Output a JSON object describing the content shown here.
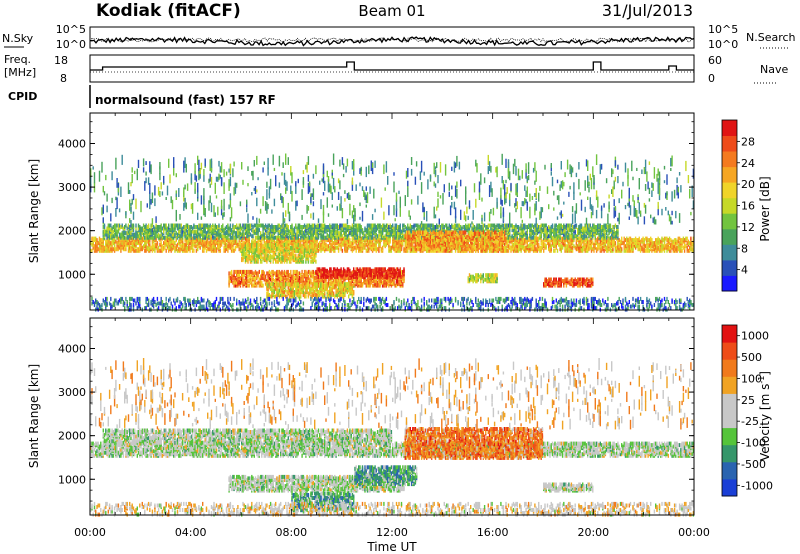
{
  "header": {
    "station": "Kodiak (fitACF)",
    "beam": "Beam 01",
    "date": "31/Jul/2013"
  },
  "top_panels": {
    "nsky": {
      "left_label": "N.Sky",
      "right_label": "N.Search",
      "left_ticks": [
        "10^5",
        "10^0"
      ],
      "right_ticks": [
        "10^5",
        "10^0"
      ]
    },
    "freq": {
      "left_label_line1": "Freq.",
      "left_label_line2": "[MHz]",
      "right_label": "Nave",
      "left_ticks": [
        "18",
        "8"
      ],
      "right_ticks": [
        "60",
        "0"
      ]
    },
    "cpid": {
      "label": "CPID",
      "text": "normalsound (fast) 157 RF"
    }
  },
  "chart_data": [
    {
      "type": "heatmap",
      "panel": "power",
      "xlabel": "Time UT",
      "ylabel": "Slant Range [km]",
      "xlim_hours": [
        0,
        24
      ],
      "x_ticks": [
        "00:00",
        "04:00",
        "08:00",
        "12:00",
        "16:00",
        "20:00",
        "00:00"
      ],
      "ylim_km": [
        180,
        4700
      ],
      "y_ticks": [
        1000,
        2000,
        3000,
        4000
      ],
      "colorbar": {
        "label": "Power [dB]",
        "tick_labels": [
          "4",
          "8",
          "12",
          "16",
          "20",
          "24",
          "28"
        ],
        "colors": [
          "#1a1aff",
          "#2950b8",
          "#3e8c9a",
          "#49a35b",
          "#72c43f",
          "#c6d928",
          "#f0d42a",
          "#f6a623",
          "#f47a1f",
          "#ee4b1a",
          "#e01414"
        ]
      },
      "regions": [
        {
          "name": "band-1700",
          "t": [
            0,
            24
          ],
          "r": [
            1550,
            1850
          ],
          "level": 0.65
        },
        {
          "name": "band-2000",
          "t": [
            0.5,
            21
          ],
          "r": [
            1850,
            2150
          ],
          "level": 0.35
        },
        {
          "name": "mid-900",
          "t": [
            5.5,
            12.5
          ],
          "r": [
            750,
            1100
          ],
          "level": 0.75
        },
        {
          "name": "strong-1000",
          "t": [
            9,
            12.5
          ],
          "r": [
            950,
            1150
          ],
          "level": 0.95
        },
        {
          "name": "low-600",
          "t": [
            7,
            10.5
          ],
          "r": [
            500,
            800
          ],
          "level": 0.6
        },
        {
          "name": "band-1500",
          "t": [
            6,
            9
          ],
          "r": [
            1300,
            1700
          ],
          "level": 0.55
        },
        {
          "name": "patch-1800",
          "t": [
            12.5,
            16.5
          ],
          "r": [
            1550,
            2000
          ],
          "level": 0.7
        },
        {
          "name": "patch-900",
          "t": [
            15,
            16.2
          ],
          "r": [
            850,
            1000
          ],
          "level": 0.5
        },
        {
          "name": "patch-800",
          "t": [
            18,
            20
          ],
          "r": [
            750,
            900
          ],
          "level": 0.85
        },
        {
          "name": "near-300",
          "t": [
            0,
            24
          ],
          "r": [
            200,
            450
          ],
          "level": 0.2
        },
        {
          "name": "sparse-high",
          "t": [
            0,
            24
          ],
          "r": [
            2200,
            3600
          ],
          "level": 0.3
        }
      ]
    },
    {
      "type": "heatmap",
      "panel": "velocity",
      "xlabel": "Time UT",
      "ylabel": "Slant Range [km]",
      "xlim_hours": [
        0,
        24
      ],
      "x_ticks": [
        "00:00",
        "04:00",
        "08:00",
        "12:00",
        "16:00",
        "20:00",
        "00:00"
      ],
      "ylim_km": [
        180,
        4700
      ],
      "y_ticks": [
        1000,
        2000,
        3000,
        4000
      ],
      "colorbar": {
        "label": "Velocity [m s-1]",
        "tick_labels": [
          "1000",
          "500",
          "100",
          "25",
          "-25",
          "-100",
          "-500",
          "-1000"
        ],
        "colors": [
          "#1a3fd6",
          "#2a64b0",
          "#35966a",
          "#55c43a",
          "#c8c8c8",
          "#c8c8c8",
          "#f0a324",
          "#f07a1c",
          "#ee4c18",
          "#e21212"
        ]
      },
      "regions": [
        {
          "name": "band-1700",
          "t": [
            0,
            24
          ],
          "r": [
            1550,
            1850
          ],
          "level": 0.45
        },
        {
          "name": "band-2000",
          "t": [
            0.5,
            12
          ],
          "r": [
            1850,
            2150
          ],
          "level": 0.45
        },
        {
          "name": "mid-900",
          "t": [
            5.5,
            12.5
          ],
          "r": [
            750,
            1100
          ],
          "level": 0.45
        },
        {
          "name": "green-1000",
          "t": [
            10.5,
            13
          ],
          "r": [
            900,
            1300
          ],
          "level": 0.3
        },
        {
          "name": "low-green",
          "t": [
            8,
            10.5
          ],
          "r": [
            300,
            700
          ],
          "level": 0.3
        },
        {
          "name": "orange-1800",
          "t": [
            12.5,
            18
          ],
          "r": [
            1500,
            2200
          ],
          "level": 0.75
        },
        {
          "name": "patch-800",
          "t": [
            18,
            20
          ],
          "r": [
            750,
            900
          ],
          "level": 0.45
        },
        {
          "name": "near-300",
          "t": [
            0,
            24
          ],
          "r": [
            200,
            450
          ],
          "level": 0.55
        },
        {
          "name": "sparse-high",
          "t": [
            0,
            24
          ],
          "r": [
            2200,
            3600
          ],
          "level": 0.6
        }
      ]
    }
  ]
}
